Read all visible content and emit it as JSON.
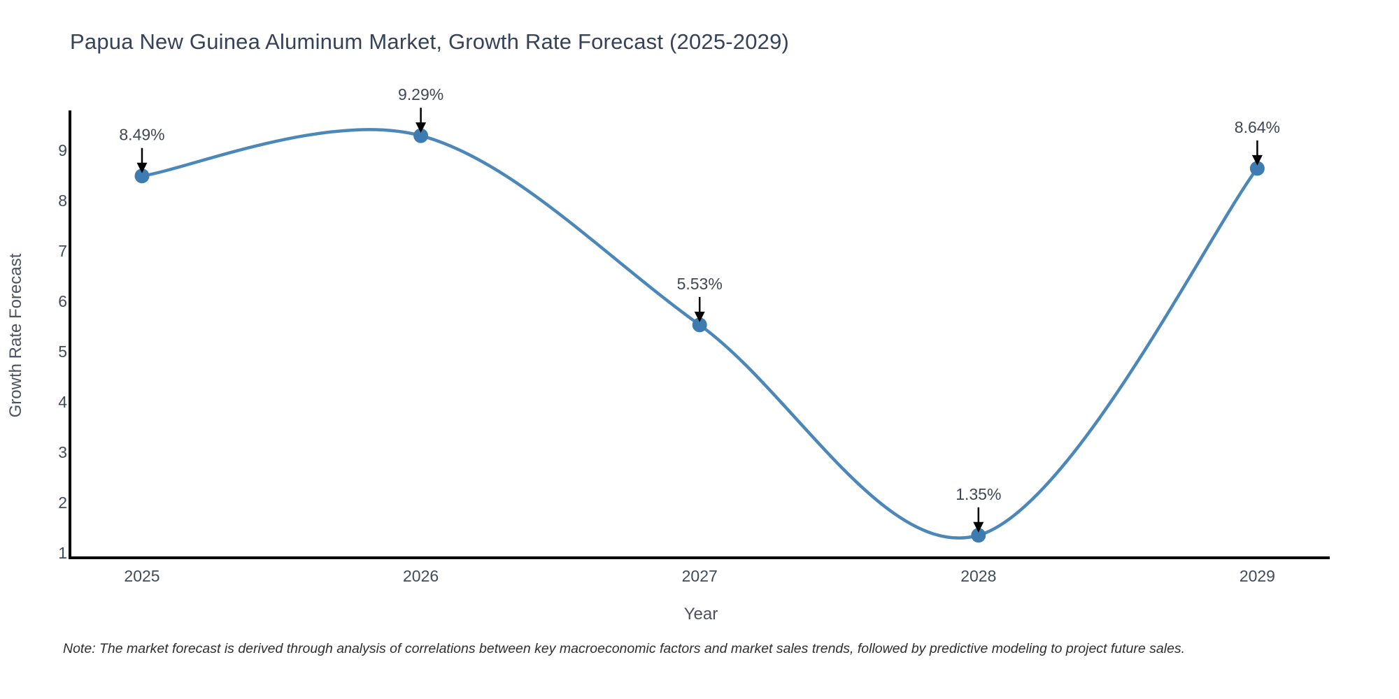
{
  "title": "Papua New Guinea Aluminum Market, Growth Rate Forecast (2025-2029)",
  "note": "Note: The market forecast is derived through analysis of correlations between key macroeconomic factors and market sales trends, followed by predictive modeling to project future sales.",
  "chart_data": {
    "type": "line",
    "line_shape": "spline",
    "title": "Papua New Guinea Aluminum Market, Growth Rate Forecast (2025-2029)",
    "xlabel": "Year",
    "ylabel": "Growth Rate Forecast",
    "x": [
      2025,
      2026,
      2027,
      2028,
      2029
    ],
    "x_tick_labels": [
      "2025",
      "2026",
      "2027",
      "2028",
      "2029"
    ],
    "series": [
      {
        "name": "Growth Rate Forecast",
        "values": [
          8.49,
          9.29,
          5.53,
          1.35,
          8.64
        ]
      }
    ],
    "point_labels": [
      "8.49%",
      "9.29%",
      "5.53%",
      "1.35%",
      "8.64%"
    ],
    "y_ticks": [
      1,
      2,
      3,
      4,
      5,
      6,
      7,
      8,
      9
    ],
    "y_tick_labels": [
      "1",
      "2",
      "3",
      "4",
      "5",
      "6",
      "7",
      "8",
      "9"
    ],
    "ylim": [
      0.9,
      9.8
    ],
    "xlim": [
      2024.74,
      2029.26
    ],
    "grid": false,
    "legend": false,
    "annotation_style": "value label with black down-arrow pointing at each data point",
    "colors": {
      "line": "#4b87b9",
      "marker": "#3e7bb1",
      "arrow": "#000000",
      "axis": "#000000"
    }
  }
}
